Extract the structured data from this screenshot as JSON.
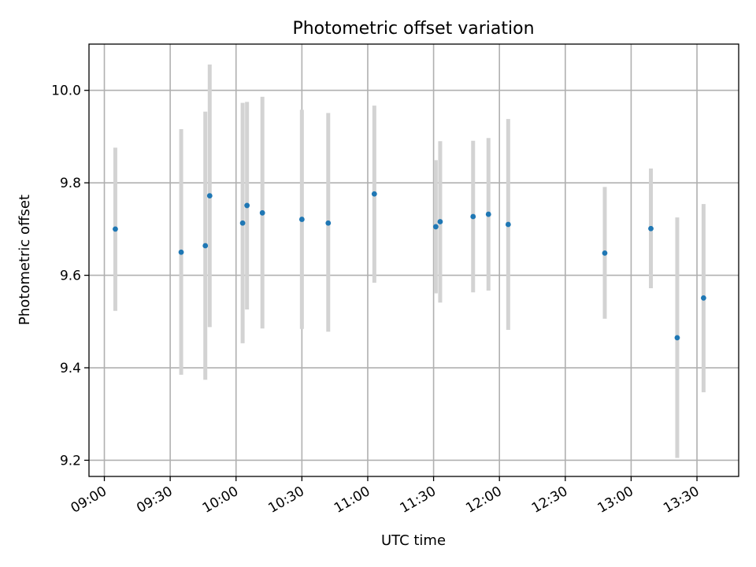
{
  "chart_data": {
    "type": "scatter",
    "title": "Photometric offset variation",
    "xlabel": "UTC time",
    "ylabel": "Photometric offset",
    "xlim": [
      "08:53",
      "13:49"
    ],
    "ylim": [
      9.165,
      10.1
    ],
    "grid": true,
    "x_ticks": [
      "09:00",
      "09:30",
      "10:00",
      "10:30",
      "11:00",
      "11:30",
      "12:00",
      "12:30",
      "13:00",
      "13:30"
    ],
    "y_ticks": [
      "9.2",
      "9.4",
      "9.6",
      "9.8",
      "10.0"
    ],
    "colors": {
      "point": "#1f77b4",
      "errorbar": "#d3d3d3"
    },
    "points": [
      {
        "x": "09:05",
        "y": 9.7,
        "low": 9.523,
        "high": 9.876
      },
      {
        "x": "09:35",
        "y": 9.65,
        "low": 9.385,
        "high": 9.916
      },
      {
        "x": "09:46",
        "y": 9.664,
        "low": 9.374,
        "high": 9.954
      },
      {
        "x": "09:48",
        "y": 9.772,
        "low": 9.488,
        "high": 10.056
      },
      {
        "x": "10:03",
        "y": 9.713,
        "low": 9.453,
        "high": 9.973
      },
      {
        "x": "10:05",
        "y": 9.751,
        "low": 9.526,
        "high": 9.975
      },
      {
        "x": "10:12",
        "y": 9.735,
        "low": 9.485,
        "high": 9.986
      },
      {
        "x": "10:30",
        "y": 9.721,
        "low": 9.484,
        "high": 9.958
      },
      {
        "x": "10:42",
        "y": 9.713,
        "low": 9.478,
        "high": 9.951
      },
      {
        "x": "11:03",
        "y": 9.776,
        "low": 9.584,
        "high": 9.967
      },
      {
        "x": "11:31",
        "y": 9.705,
        "low": 9.561,
        "high": 9.849
      },
      {
        "x": "11:33",
        "y": 9.716,
        "low": 9.541,
        "high": 9.89
      },
      {
        "x": "11:48",
        "y": 9.727,
        "low": 9.563,
        "high": 9.891
      },
      {
        "x": "11:55",
        "y": 9.732,
        "low": 9.567,
        "high": 9.897
      },
      {
        "x": "12:04",
        "y": 9.71,
        "low": 9.482,
        "high": 9.938
      },
      {
        "x": "12:48",
        "y": 9.648,
        "low": 9.506,
        "high": 9.791
      },
      {
        "x": "13:09",
        "y": 9.701,
        "low": 9.572,
        "high": 9.831
      },
      {
        "x": "13:21",
        "y": 9.465,
        "low": 9.205,
        "high": 9.725
      },
      {
        "x": "13:33",
        "y": 9.551,
        "low": 9.347,
        "high": 9.754
      }
    ]
  }
}
